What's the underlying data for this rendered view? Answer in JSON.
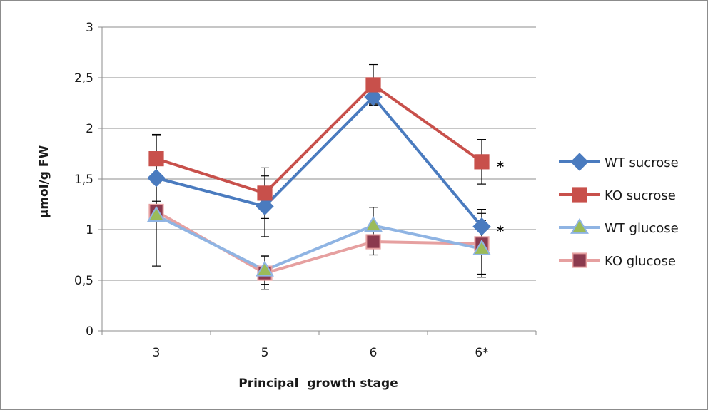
{
  "chart_data": {
    "type": "line",
    "categories": [
      "3",
      "5",
      "6",
      "6*"
    ],
    "xlabel": "Principal  growth stage",
    "ylabel": "µmol/g FW",
    "ylim": [
      0,
      3
    ],
    "yticks": [
      "0",
      "0,5",
      "1",
      "1,5",
      "2",
      "2,5",
      "3"
    ],
    "grid": true,
    "legend_position": "right",
    "series": [
      {
        "name": "WT sucrose",
        "values": [
          1.51,
          1.23,
          2.31,
          1.03
        ],
        "errors": [
          0.42,
          0.3,
          0.07,
          0.17
        ],
        "color": "#4a7bbf",
        "marker": "diamond",
        "marker_fill": "#4a7bbf",
        "marker_stroke": "#4a7bbf"
      },
      {
        "name": "KO sucrose",
        "values": [
          1.7,
          1.36,
          2.43,
          1.67
        ],
        "errors": [
          0.24,
          0.25,
          0.2,
          0.22
        ],
        "color": "#c8504b",
        "marker": "square",
        "marker_fill": "#c8504b",
        "marker_stroke": "#c8504b"
      },
      {
        "name": "WT glucose",
        "values": [
          1.14,
          0.6,
          1.04,
          0.81
        ],
        "errors": [
          0.5,
          0.14,
          0.18,
          0.28
        ],
        "color": "#8fb4e3",
        "marker": "triangle",
        "marker_fill": "#9bbb59",
        "marker_stroke": "#8fb4e3"
      },
      {
        "name": "KO glucose",
        "values": [
          1.18,
          0.57,
          0.88,
          0.86
        ],
        "errors": [
          0.1,
          0.16,
          0.13,
          0.3
        ],
        "color": "#e6a0a0",
        "marker": "square",
        "marker_fill": "#8b3a4e",
        "marker_stroke": "#e6a0a0"
      }
    ],
    "annotations": [
      {
        "text": "*",
        "category": "6*",
        "y": 1.67
      },
      {
        "text": "*",
        "category": "6*",
        "y": 1.03
      }
    ]
  }
}
